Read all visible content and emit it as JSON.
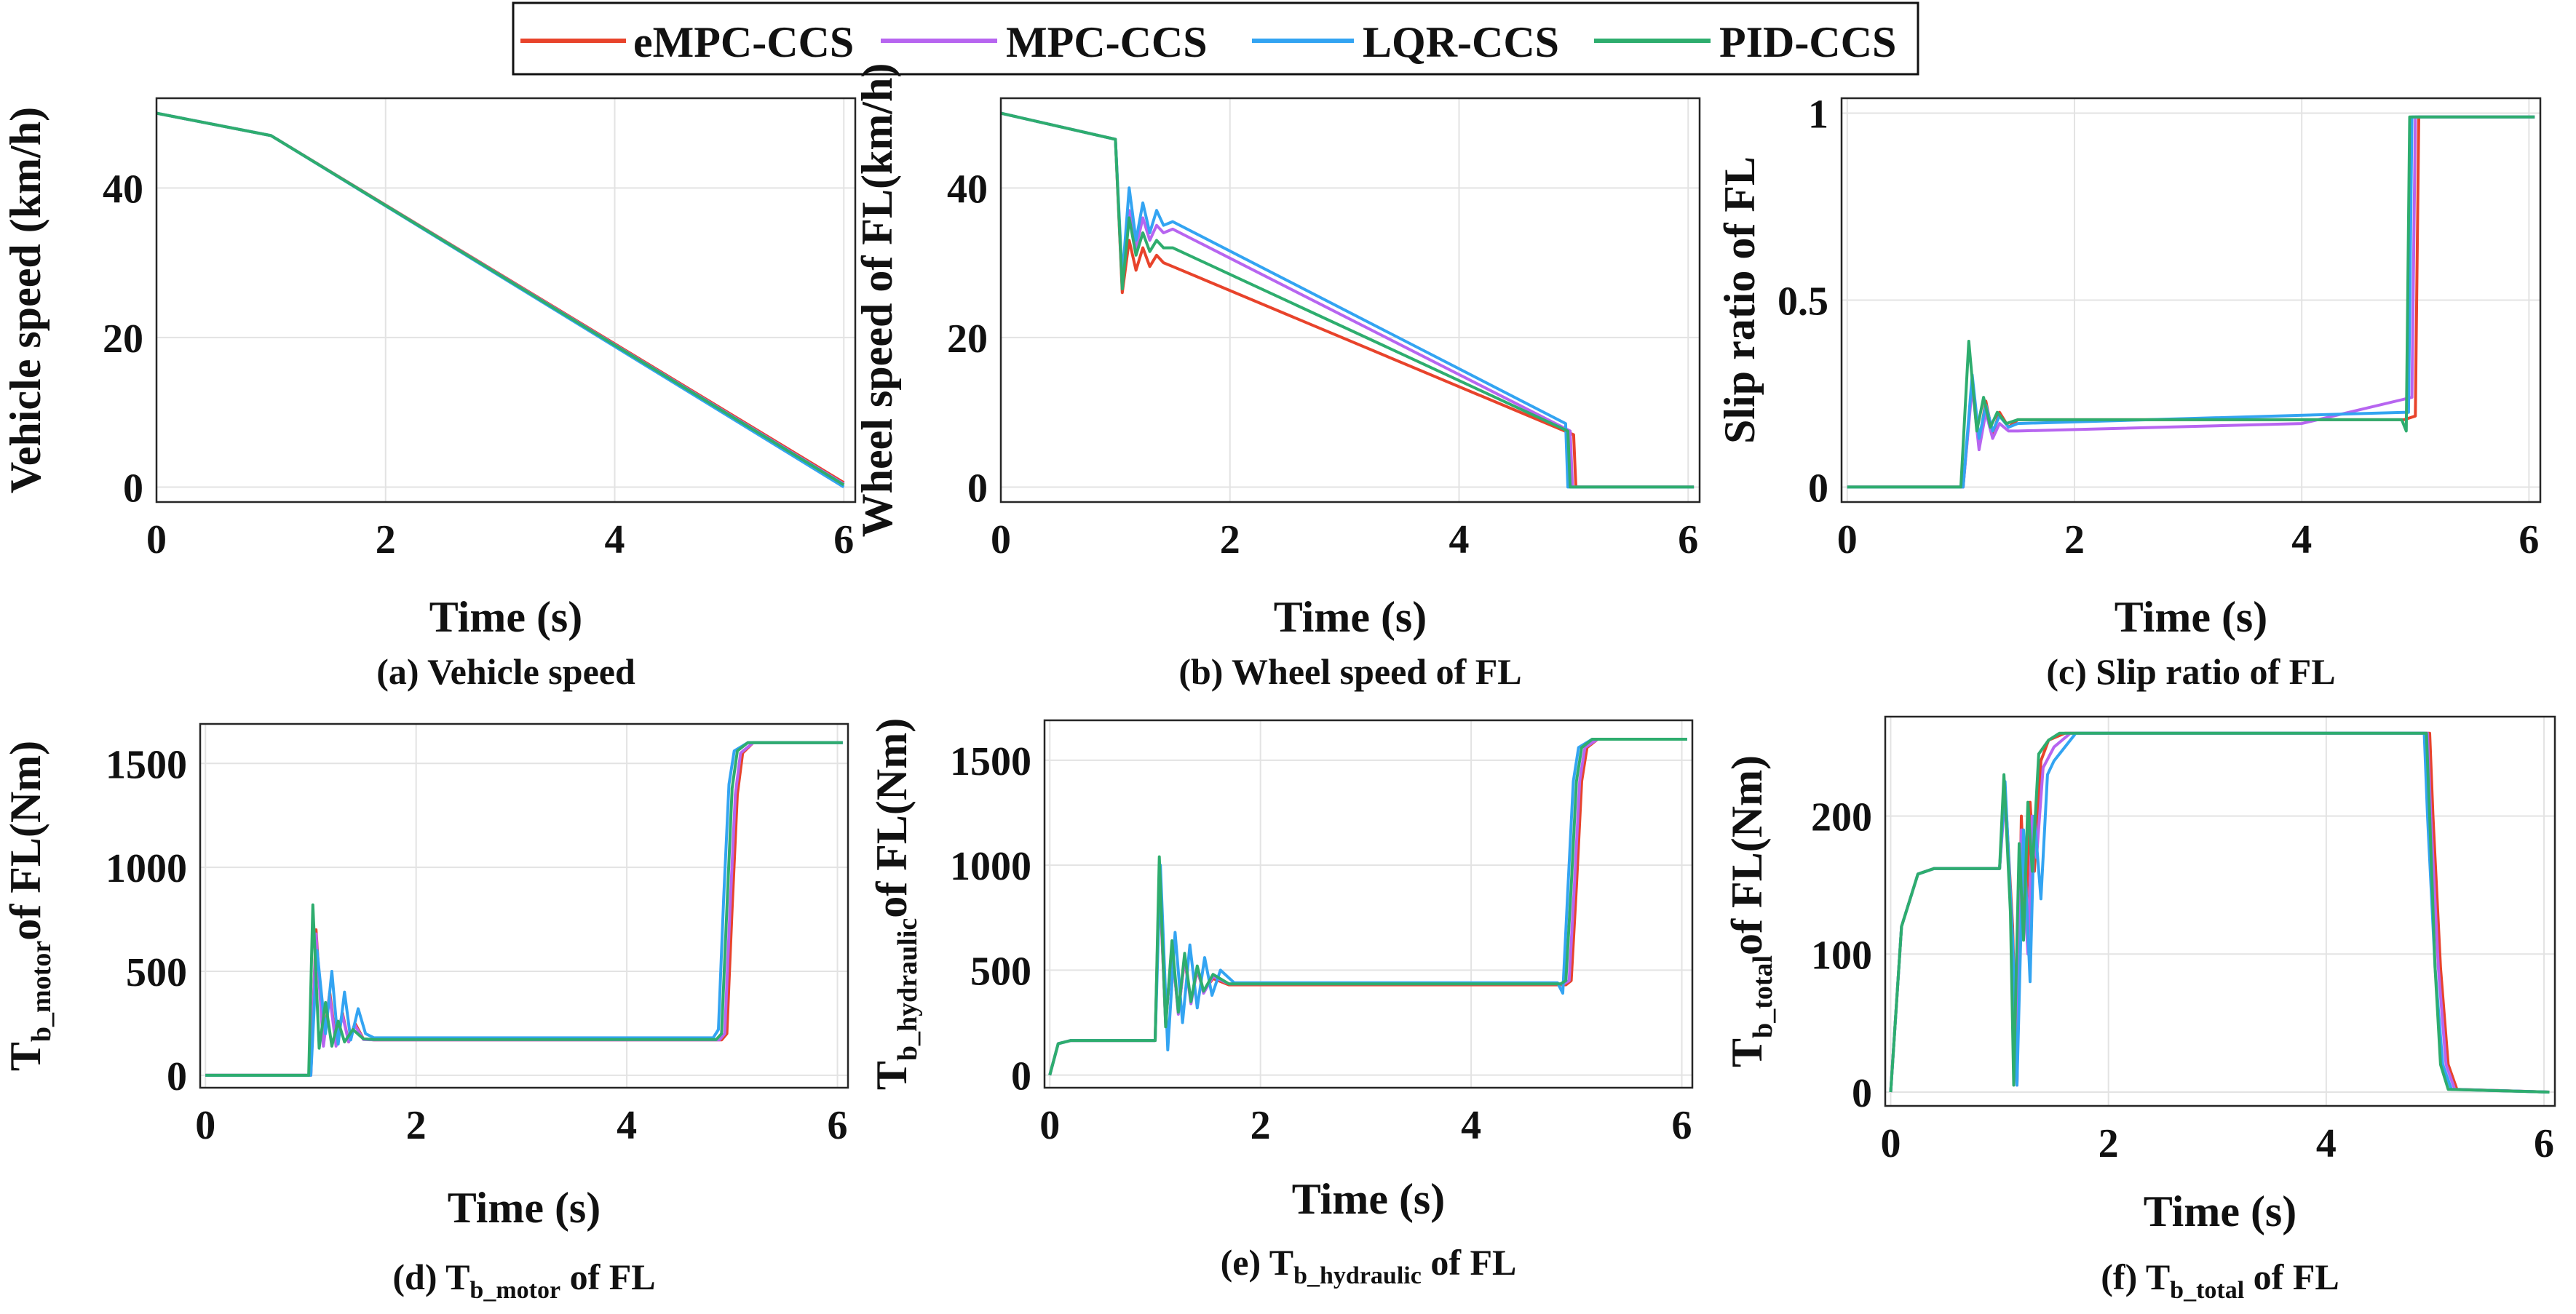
{
  "colors": {
    "eMPC-CCS": "#e8432b",
    "MPC-CCS": "#b765f0",
    "LQR-CCS": "#33a4f2",
    "PID-CCS": "#2ead6e",
    "grid": "#e3e3e3",
    "axis": "#262626"
  },
  "legend": [
    "eMPC-CCS",
    "MPC-CCS",
    "LQR-CCS",
    "PID-CCS"
  ],
  "chart_data": [
    {
      "id": "a",
      "type": "line",
      "title": "(a) Vehicle speed",
      "xlabel": "Time (s)",
      "ylabel": "Vehicle speed (km/h)",
      "xlim": [
        0,
        6.1
      ],
      "ylim": [
        -2,
        52
      ],
      "xticks": [
        0,
        2,
        4,
        6
      ],
      "yticks": [
        0,
        20,
        40
      ],
      "series": [
        {
          "name": "eMPC-CCS",
          "x": [
            0,
            1,
            6
          ],
          "y": [
            50,
            47,
            0.6
          ]
        },
        {
          "name": "MPC-CCS",
          "x": [
            0,
            1,
            6
          ],
          "y": [
            50,
            47,
            0.4
          ]
        },
        {
          "name": "LQR-CCS",
          "x": [
            0,
            1,
            6
          ],
          "y": [
            50,
            47,
            0
          ]
        },
        {
          "name": "PID-CCS",
          "x": [
            0,
            1,
            6
          ],
          "y": [
            50,
            47,
            0.3
          ]
        }
      ]
    },
    {
      "id": "b",
      "type": "line",
      "title": "(b) Wheel  speed of FL",
      "xlabel": "Time (s)",
      "ylabel": "Wheel  speed of FL(km/h)",
      "xlim": [
        0,
        6.1
      ],
      "ylim": [
        -2,
        52
      ],
      "xticks": [
        0,
        2,
        4,
        6
      ],
      "yticks": [
        0,
        20,
        40
      ],
      "series": [
        {
          "name": "eMPC-CCS",
          "x": [
            0,
            1,
            1.06,
            1.12,
            1.18,
            1.24,
            1.3,
            1.36,
            1.42,
            1.5,
            5.0,
            5.02,
            6.05
          ],
          "y": [
            50,
            46.5,
            26,
            33,
            29,
            32,
            29.5,
            31,
            30,
            29.5,
            7,
            0,
            0
          ]
        },
        {
          "name": "MPC-CCS",
          "x": [
            0,
            1,
            1.06,
            1.12,
            1.18,
            1.24,
            1.3,
            1.36,
            1.42,
            1.5,
            4.97,
            4.99,
            6.05
          ],
          "y": [
            50,
            46.5,
            27,
            37,
            32,
            36,
            33,
            35,
            34,
            34.5,
            7.5,
            0,
            0
          ]
        },
        {
          "name": "LQR-CCS",
          "x": [
            0,
            1,
            1.06,
            1.12,
            1.18,
            1.24,
            1.3,
            1.36,
            1.42,
            1.5,
            4.93,
            4.95,
            6.05
          ],
          "y": [
            50,
            46.5,
            28,
            40,
            33,
            38,
            34,
            37,
            35,
            35.5,
            8.5,
            0,
            0
          ]
        },
        {
          "name": "PID-CCS",
          "x": [
            0,
            1,
            1.06,
            1.12,
            1.18,
            1.24,
            1.3,
            1.36,
            1.42,
            1.5,
            4.95,
            4.97,
            6.05
          ],
          "y": [
            50,
            46.5,
            26.5,
            36,
            31,
            34,
            31.5,
            33,
            32,
            32,
            7.5,
            0,
            0
          ]
        }
      ]
    },
    {
      "id": "c",
      "type": "line",
      "title": "(c) Slip ratio of FL",
      "xlabel": "Time (s)",
      "ylabel": "Slip ratio of FL",
      "xlim": [
        -0.05,
        6.1
      ],
      "ylim": [
        -0.04,
        1.04
      ],
      "xticks": [
        0,
        2,
        4,
        6
      ],
      "yticks": [
        0,
        0.5,
        1
      ],
      "yticklabels": [
        "0",
        "0.5",
        "1"
      ],
      "series": [
        {
          "name": "eMPC-CCS",
          "x": [
            0,
            1.02,
            1.1,
            1.16,
            1.22,
            1.28,
            1.34,
            1.42,
            1.5,
            4.9,
            5.0,
            5.03,
            6.05
          ],
          "y": [
            0,
            0,
            0.28,
            0.12,
            0.23,
            0.14,
            0.2,
            0.16,
            0.18,
            0.18,
            0.19,
            0.99,
            0.99
          ]
        },
        {
          "name": "MPC-CCS",
          "x": [
            0,
            1.02,
            1.1,
            1.16,
            1.22,
            1.28,
            1.34,
            1.42,
            1.5,
            4.0,
            4.97,
            5.0,
            6.05
          ],
          "y": [
            0,
            0,
            0.27,
            0.1,
            0.2,
            0.13,
            0.17,
            0.15,
            0.15,
            0.17,
            0.24,
            0.99,
            0.99
          ]
        },
        {
          "name": "LQR-CCS",
          "x": [
            0,
            1.02,
            1.1,
            1.16,
            1.22,
            1.28,
            1.34,
            1.42,
            1.5,
            4.9,
            4.94,
            4.97,
            6.05
          ],
          "y": [
            0,
            0,
            0.3,
            0.13,
            0.22,
            0.15,
            0.19,
            0.16,
            0.17,
            0.2,
            0.2,
            0.99,
            0.99
          ]
        },
        {
          "name": "PID-CCS",
          "x": [
            0,
            1.0,
            1.07,
            1.14,
            1.2,
            1.26,
            1.32,
            1.4,
            1.5,
            4.88,
            4.92,
            4.95,
            6.05
          ],
          "y": [
            0,
            0,
            0.39,
            0.15,
            0.24,
            0.16,
            0.2,
            0.17,
            0.18,
            0.18,
            0.15,
            0.99,
            0.99
          ]
        }
      ]
    },
    {
      "id": "d",
      "type": "line",
      "title": "(d) T_b_motor of FL",
      "title_parts": [
        "(d) T",
        "b_motor",
        " of FL"
      ],
      "xlabel": "Time (s)",
      "ylabel_parts": [
        "T",
        "b_motor",
        "of FL(Nm)"
      ],
      "xlim": [
        -0.05,
        6.1
      ],
      "ylim": [
        -60,
        1690
      ],
      "xticks": [
        0,
        2,
        4,
        6
      ],
      "yticks": [
        0,
        500,
        1000,
        1500
      ],
      "series": [
        {
          "name": "eMPC-CCS",
          "x": [
            0,
            1.0,
            1.05,
            1.12,
            1.18,
            1.24,
            1.3,
            1.36,
            1.42,
            1.5,
            1.6,
            4.9,
            4.95,
            5.0,
            5.05,
            5.1,
            5.2,
            6.05
          ],
          "y": [
            0,
            0,
            700,
            150,
            400,
            150,
            300,
            160,
            250,
            175,
            170,
            170,
            200,
            800,
            1350,
            1550,
            1600,
            1600
          ]
        },
        {
          "name": "MPC-CCS",
          "x": [
            0,
            1.0,
            1.05,
            1.12,
            1.18,
            1.24,
            1.3,
            1.36,
            1.42,
            1.5,
            1.6,
            4.88,
            4.93,
            4.98,
            5.03,
            5.08,
            5.2,
            6.05
          ],
          "y": [
            0,
            0,
            680,
            140,
            380,
            140,
            290,
            160,
            240,
            172,
            170,
            170,
            200,
            800,
            1350,
            1550,
            1600,
            1600
          ]
        },
        {
          "name": "LQR-CCS",
          "x": [
            0,
            1.0,
            1.06,
            1.14,
            1.2,
            1.26,
            1.32,
            1.38,
            1.45,
            1.52,
            1.6,
            4.82,
            4.87,
            4.92,
            4.97,
            5.02,
            5.15,
            6.05
          ],
          "y": [
            0,
            0,
            600,
            200,
            500,
            150,
            400,
            170,
            320,
            200,
            180,
            180,
            220,
            850,
            1400,
            1560,
            1600,
            1600
          ]
        },
        {
          "name": "PID-CCS",
          "x": [
            0,
            0.98,
            1.02,
            1.08,
            1.14,
            1.2,
            1.26,
            1.32,
            1.4,
            1.5,
            1.6,
            4.85,
            4.9,
            4.95,
            5.0,
            5.05,
            5.15,
            6.05
          ],
          "y": [
            0,
            0,
            820,
            130,
            350,
            140,
            260,
            160,
            220,
            175,
            172,
            172,
            200,
            800,
            1380,
            1560,
            1600,
            1600
          ]
        }
      ]
    },
    {
      "id": "e",
      "type": "line",
      "title": "(e) T_b_hydraulic of FL",
      "title_parts": [
        "(e) T",
        "b_hydraulic",
        " of FL"
      ],
      "xlabel": "Time (s)",
      "ylabel_parts": [
        "T",
        "b_hydraulic",
        "of FL(Nm)"
      ],
      "xlim": [
        -0.05,
        6.1
      ],
      "ylim": [
        -60,
        1690
      ],
      "xticks": [
        0,
        2,
        4,
        6
      ],
      "yticks": [
        0,
        500,
        1000,
        1500
      ],
      "series": [
        {
          "name": "eMPC-CCS",
          "x": [
            0,
            0.08,
            0.2,
            1.0,
            1.04,
            1.1,
            1.16,
            1.22,
            1.28,
            1.34,
            1.4,
            1.46,
            1.55,
            1.7,
            4.9,
            4.95,
            5.0,
            5.05,
            5.1,
            5.2,
            6.05
          ],
          "y": [
            0,
            150,
            165,
            165,
            950,
            250,
            600,
            300,
            550,
            350,
            500,
            400,
            460,
            430,
            430,
            450,
            900,
            1400,
            1560,
            1600,
            1600
          ]
        },
        {
          "name": "MPC-CCS",
          "x": [
            0,
            0.08,
            0.2,
            1.0,
            1.04,
            1.1,
            1.16,
            1.22,
            1.28,
            1.34,
            1.4,
            1.46,
            1.55,
            1.7,
            4.88,
            4.93,
            4.98,
            5.03,
            5.08,
            5.2,
            6.05
          ],
          "y": [
            0,
            150,
            165,
            165,
            980,
            240,
            620,
            290,
            560,
            340,
            510,
            390,
            470,
            435,
            435,
            450,
            900,
            1400,
            1560,
            1600,
            1600
          ]
        },
        {
          "name": "LQR-CCS",
          "x": [
            0,
            0.08,
            0.2,
            1.0,
            1.05,
            1.12,
            1.19,
            1.26,
            1.33,
            1.4,
            1.47,
            1.54,
            1.62,
            1.75,
            4.82,
            4.87,
            4.92,
            4.97,
            5.02,
            5.15,
            6.05
          ],
          "y": [
            0,
            150,
            165,
            165,
            1000,
            120,
            680,
            250,
            620,
            320,
            560,
            380,
            500,
            440,
            440,
            390,
            900,
            1400,
            1560,
            1600,
            1600
          ]
        },
        {
          "name": "PID-CCS",
          "x": [
            0,
            0.08,
            0.2,
            1.0,
            1.04,
            1.1,
            1.16,
            1.22,
            1.28,
            1.34,
            1.4,
            1.46,
            1.55,
            1.7,
            4.85,
            4.9,
            4.95,
            5.0,
            5.05,
            5.15,
            6.05
          ],
          "y": [
            0,
            150,
            165,
            165,
            1040,
            230,
            640,
            300,
            580,
            350,
            520,
            400,
            480,
            435,
            435,
            450,
            900,
            1400,
            1560,
            1600,
            1600
          ]
        }
      ]
    },
    {
      "id": "f",
      "type": "line",
      "title": "(f) T_b_total of FL",
      "title_parts": [
        "(f) T",
        "b_total",
        " of FL"
      ],
      "xlabel": "Time (s)",
      "ylabel_parts": [
        "T",
        "b_total",
        "of FL(Nm)"
      ],
      "xlim": [
        -0.05,
        6.1
      ],
      "ylim": [
        -10,
        272
      ],
      "xticks": [
        0,
        2,
        4,
        6
      ],
      "yticks": [
        0,
        100,
        200
      ],
      "series": [
        {
          "name": "eMPC-CCS",
          "x": [
            0,
            0.1,
            0.25,
            0.4,
            1.0,
            1.05,
            1.12,
            1.16,
            1.2,
            1.24,
            1.28,
            1.32,
            1.38,
            1.45,
            1.6,
            4.95,
            4.98,
            5.05,
            5.12,
            5.2,
            6.05
          ],
          "y": [
            0,
            120,
            158,
            162,
            162,
            220,
            120,
            5,
            200,
            120,
            210,
            160,
            240,
            255,
            260,
            260,
            200,
            90,
            20,
            2,
            0
          ]
        },
        {
          "name": "MPC-CCS",
          "x": [
            0,
            0.1,
            0.25,
            0.4,
            1.0,
            1.05,
            1.12,
            1.16,
            1.2,
            1.26,
            1.3,
            1.34,
            1.4,
            1.5,
            1.65,
            4.93,
            4.96,
            5.03,
            5.1,
            5.18,
            6.05
          ],
          "y": [
            0,
            120,
            158,
            162,
            162,
            215,
            110,
            5,
            190,
            100,
            200,
            170,
            235,
            250,
            260,
            260,
            200,
            90,
            20,
            2,
            0
          ]
        },
        {
          "name": "LQR-CCS",
          "x": [
            0,
            0.1,
            0.25,
            0.4,
            1.0,
            1.05,
            1.12,
            1.16,
            1.22,
            1.28,
            1.32,
            1.38,
            1.44,
            1.5,
            1.7,
            4.9,
            4.93,
            5.0,
            5.07,
            5.15,
            6.05
          ],
          "y": [
            0,
            120,
            158,
            162,
            162,
            225,
            110,
            5,
            190,
            80,
            200,
            140,
            230,
            240,
            260,
            260,
            200,
            90,
            20,
            2,
            0
          ]
        },
        {
          "name": "PID-CCS",
          "x": [
            0,
            0.1,
            0.25,
            0.4,
            1.0,
            1.04,
            1.1,
            1.13,
            1.18,
            1.22,
            1.26,
            1.3,
            1.36,
            1.45,
            1.55,
            4.92,
            4.95,
            5.0,
            5.05,
            5.12,
            6.05
          ],
          "y": [
            0,
            120,
            158,
            162,
            162,
            230,
            130,
            5,
            180,
            110,
            210,
            160,
            245,
            255,
            260,
            260,
            200,
            90,
            20,
            2,
            0
          ]
        }
      ]
    }
  ]
}
